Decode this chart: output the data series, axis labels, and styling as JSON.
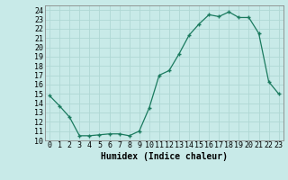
{
  "x": [
    0,
    1,
    2,
    3,
    4,
    5,
    6,
    7,
    8,
    9,
    10,
    11,
    12,
    13,
    14,
    15,
    16,
    17,
    18,
    19,
    20,
    21,
    22,
    23
  ],
  "y": [
    14.8,
    13.7,
    12.5,
    10.5,
    10.5,
    10.6,
    10.7,
    10.7,
    10.5,
    11.0,
    13.5,
    17.0,
    17.5,
    19.3,
    21.3,
    22.5,
    23.5,
    23.3,
    23.8,
    23.2,
    23.2,
    21.5,
    16.3,
    15.0
  ],
  "xlabel": "Humidex (Indice chaleur)",
  "xlim": [
    -0.5,
    23.5
  ],
  "ylim": [
    10,
    24.5
  ],
  "yticks": [
    10,
    11,
    12,
    13,
    14,
    15,
    16,
    17,
    18,
    19,
    20,
    21,
    22,
    23,
    24
  ],
  "xticks": [
    0,
    1,
    2,
    3,
    4,
    5,
    6,
    7,
    8,
    9,
    10,
    11,
    12,
    13,
    14,
    15,
    16,
    17,
    18,
    19,
    20,
    21,
    22,
    23
  ],
  "line_color": "#1a7a5e",
  "marker_color": "#1a7a5e",
  "bg_color": "#c8eae8",
  "grid_color": "#b0d8d4",
  "label_fontsize": 7.0,
  "tick_fontsize": 6.0
}
